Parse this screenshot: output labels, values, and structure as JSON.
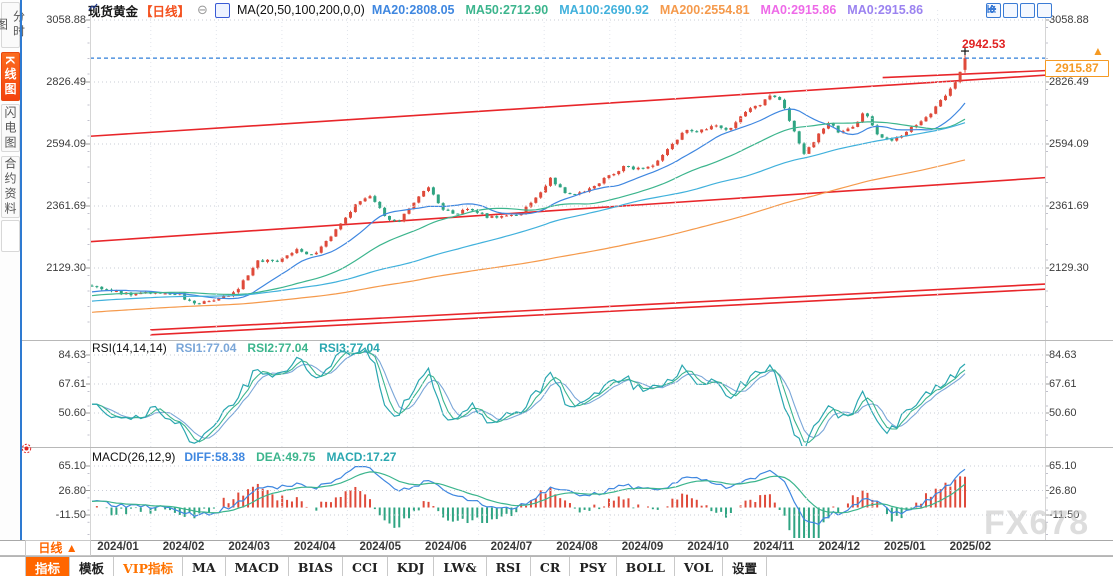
{
  "sidebar": {
    "items": [
      {
        "label": "分时图",
        "active": false
      },
      {
        "label": "K线图",
        "active": true
      },
      {
        "label": "闪电图",
        "active": false
      },
      {
        "label": "合约资料",
        "active": false
      }
    ]
  },
  "header": {
    "symbol": "现货黄金",
    "period": "【日线】",
    "period_color": "#f4511e",
    "collapse_glyph": "⊖",
    "ma_formula": "MA(20,50,100,200,0,0)",
    "ma_legend": [
      {
        "label": "MA20:2808.05",
        "color": "#3f87e0"
      },
      {
        "label": "MA50:2712.90",
        "color": "#3cb58d"
      },
      {
        "label": "MA100:2690.92",
        "color": "#41b1dc"
      },
      {
        "label": "MA200:2554.81",
        "color": "#f59a4c"
      },
      {
        "label": "MA0:2915.86",
        "color": "#ee6ae8"
      },
      {
        "label": "MA0:2915.86",
        "color": "#9b83f0"
      }
    ]
  },
  "top_right_icons": [
    "layout-grid-icon",
    "chart-axes-icon",
    "chart-bars-icon",
    "pan-right-icon"
  ],
  "price_axis": {
    "ticks": [
      "3058.88",
      "2826.49",
      "2594.09",
      "2361.69",
      "2129.30"
    ]
  },
  "rsi_panel": {
    "formula": "RSI(14,14,14)",
    "legend": [
      {
        "label": "RSI1:77.04",
        "color": "#7aa6d8"
      },
      {
        "label": "RSI2:77.04",
        "color": "#3cb58d"
      },
      {
        "label": "RSI3:77.04",
        "color": "#2aa7b0"
      }
    ],
    "ticks": [
      "84.63",
      "67.61",
      "50.60"
    ]
  },
  "macd_panel": {
    "formula": "MACD(26,12,9)",
    "legend": [
      {
        "label": "DIFF:58.38",
        "color": "#3f87e0"
      },
      {
        "label": "DEA:49.75",
        "color": "#3cb58d"
      },
      {
        "label": "MACD:17.27",
        "color": "#2aa7b0"
      }
    ],
    "ticks": [
      "65.10",
      "26.80",
      "-11.50"
    ]
  },
  "annotations": {
    "period_high": "2942.53",
    "last_price": "2915.87",
    "arrow_glyph": "▲"
  },
  "date_axis": {
    "period_button": "日线 ▲",
    "months": [
      "2024/01",
      "2024/02",
      "2024/03",
      "2024/04",
      "2024/05",
      "2024/06",
      "2024/07",
      "2024/08",
      "2024/09",
      "2024/10",
      "2024/11",
      "2024/12",
      "2025/01",
      "2025/02"
    ]
  },
  "toolbar": {
    "items": [
      {
        "label": "指标",
        "style": "active"
      },
      {
        "label": "模板",
        "style": ""
      },
      {
        "label": "VIP指标",
        "style": "vip"
      },
      {
        "label": "MA",
        "style": ""
      },
      {
        "label": "MACD",
        "style": ""
      },
      {
        "label": "BIAS",
        "style": ""
      },
      {
        "label": "CCI",
        "style": ""
      },
      {
        "label": "KDJ",
        "style": ""
      },
      {
        "label": "LW&",
        "style": ""
      },
      {
        "label": "RSI",
        "style": ""
      },
      {
        "label": "CR",
        "style": ""
      },
      {
        "label": "PSY",
        "style": ""
      },
      {
        "label": "BOLL",
        "style": ""
      },
      {
        "label": "VOL",
        "style": ""
      },
      {
        "label": "设置",
        "style": ""
      }
    ]
  },
  "watermark": "FX678",
  "colors": {
    "up": "#df4a3a",
    "down": "#2fa482",
    "trend": "#e8262a",
    "price_line": "#2f7ed8",
    "grid": "#c9ccd6",
    "ma20": "#3f87e0",
    "ma50": "#3cb58d",
    "ma100": "#41b1dc",
    "ma200": "#f59a4c",
    "rsi1": "#7aa6d8",
    "rsi2": "#3cb58d",
    "rsi3": "#2aa7b0",
    "diff": "#3f87e0",
    "dea": "#3cb58d"
  },
  "chart_data": [
    {
      "type": "candlestick",
      "title": "现货黄金 日线 (Spot Gold daily)",
      "x_range": [
        "2024/01",
        "2025/02"
      ],
      "y_ticks": [
        3058.88,
        2826.49,
        2594.09,
        2361.69,
        2129.3
      ],
      "last_close": 2915.86,
      "period_high": 2942.53,
      "last_price_line": 2915.87,
      "ma_values": {
        "MA20": 2808.05,
        "MA50": 2712.9,
        "MA100": 2690.92,
        "MA200": 2554.81
      },
      "close_keypoints": [
        [
          0,
          2063
        ],
        [
          0.02,
          2045
        ],
        [
          0.045,
          2028
        ],
        [
          0.075,
          2040
        ],
        [
          0.1,
          2032
        ],
        [
          0.115,
          1992
        ],
        [
          0.14,
          2008
        ],
        [
          0.165,
          2042
        ],
        [
          0.19,
          2158
        ],
        [
          0.21,
          2152
        ],
        [
          0.235,
          2198
        ],
        [
          0.255,
          2172
        ],
        [
          0.27,
          2240
        ],
        [
          0.29,
          2310
        ],
        [
          0.305,
          2382
        ],
        [
          0.32,
          2398
        ],
        [
          0.335,
          2322
        ],
        [
          0.35,
          2302
        ],
        [
          0.365,
          2358
        ],
        [
          0.385,
          2438
        ],
        [
          0.4,
          2355
        ],
        [
          0.415,
          2332
        ],
        [
          0.435,
          2352
        ],
        [
          0.455,
          2318
        ],
        [
          0.475,
          2322
        ],
        [
          0.49,
          2332
        ],
        [
          0.51,
          2392
        ],
        [
          0.525,
          2468
        ],
        [
          0.545,
          2402
        ],
        [
          0.56,
          2412
        ],
        [
          0.575,
          2432
        ],
        [
          0.59,
          2470
        ],
        [
          0.61,
          2508
        ],
        [
          0.63,
          2498
        ],
        [
          0.645,
          2522
        ],
        [
          0.66,
          2572
        ],
        [
          0.68,
          2652
        ],
        [
          0.695,
          2642
        ],
        [
          0.71,
          2662
        ],
        [
          0.73,
          2648
        ],
        [
          0.75,
          2718
        ],
        [
          0.765,
          2742
        ],
        [
          0.78,
          2782
        ],
        [
          0.792,
          2742
        ],
        [
          0.802,
          2658
        ],
        [
          0.815,
          2560
        ],
        [
          0.83,
          2618
        ],
        [
          0.845,
          2678
        ],
        [
          0.857,
          2632
        ],
        [
          0.87,
          2652
        ],
        [
          0.885,
          2712
        ],
        [
          0.9,
          2632
        ],
        [
          0.915,
          2602
        ],
        [
          0.93,
          2632
        ],
        [
          0.945,
          2668
        ],
        [
          0.96,
          2702
        ],
        [
          0.975,
          2772
        ],
        [
          0.985,
          2802
        ],
        [
          0.995,
          2868
        ],
        [
          1,
          2912
        ]
      ],
      "prehistory": {
        "start": 1875,
        "end": 2045
      },
      "trendlines": [
        {
          "x1_frac": -0.005,
          "p1": 2622,
          "x2_frac": 1.0,
          "p2": 2852
        },
        {
          "x1_frac": 0.83,
          "p1": 2843,
          "x2_frac": 1.071,
          "p2": 2880
        },
        {
          "x1_frac": 0.0,
          "p1": 2228,
          "x2_frac": 1.0,
          "p2": 2468
        },
        {
          "x1_frac": 0.063,
          "p1": 1897,
          "x2_frac": 1.0,
          "p2": 2069
        },
        {
          "x1_frac": 0.063,
          "p1": 1879,
          "x2_frac": 1.0,
          "p2": 2050
        }
      ]
    },
    {
      "type": "line",
      "name": "RSI(14,14,14)",
      "series": [
        "RSI1",
        "RSI2",
        "RSI3"
      ],
      "current": 77.04,
      "y_ticks": [
        84.63,
        67.61,
        50.6
      ],
      "keypoints": [
        [
          0,
          55
        ],
        [
          0.03,
          48
        ],
        [
          0.075,
          52
        ],
        [
          0.1,
          45
        ],
        [
          0.115,
          32
        ],
        [
          0.14,
          45
        ],
        [
          0.165,
          58
        ],
        [
          0.19,
          78
        ],
        [
          0.21,
          72
        ],
        [
          0.235,
          83
        ],
        [
          0.255,
          68
        ],
        [
          0.27,
          80
        ],
        [
          0.29,
          85
        ],
        [
          0.305,
          88
        ],
        [
          0.32,
          84
        ],
        [
          0.335,
          58
        ],
        [
          0.35,
          48
        ],
        [
          0.365,
          62
        ],
        [
          0.385,
          75
        ],
        [
          0.4,
          52
        ],
        [
          0.415,
          44
        ],
        [
          0.435,
          55
        ],
        [
          0.455,
          42
        ],
        [
          0.475,
          48
        ],
        [
          0.49,
          52
        ],
        [
          0.51,
          62
        ],
        [
          0.525,
          74
        ],
        [
          0.545,
          55
        ],
        [
          0.56,
          58
        ],
        [
          0.575,
          62
        ],
        [
          0.59,
          68
        ],
        [
          0.61,
          73
        ],
        [
          0.63,
          62
        ],
        [
          0.645,
          65
        ],
        [
          0.66,
          70
        ],
        [
          0.68,
          78
        ],
        [
          0.695,
          68
        ],
        [
          0.71,
          70
        ],
        [
          0.73,
          60
        ],
        [
          0.75,
          70
        ],
        [
          0.765,
          74
        ],
        [
          0.78,
          78
        ],
        [
          0.792,
          58
        ],
        [
          0.802,
          42
        ],
        [
          0.815,
          30
        ],
        [
          0.83,
          45
        ],
        [
          0.845,
          58
        ],
        [
          0.857,
          48
        ],
        [
          0.87,
          52
        ],
        [
          0.885,
          62
        ],
        [
          0.9,
          44
        ],
        [
          0.915,
          40
        ],
        [
          0.93,
          50
        ],
        [
          0.945,
          58
        ],
        [
          0.96,
          62
        ],
        [
          0.975,
          70
        ],
        [
          0.985,
          73
        ],
        [
          1,
          77
        ]
      ]
    },
    {
      "type": "line+bar",
      "name": "MACD(26,12,9)",
      "diff": 58.38,
      "dea": 49.75,
      "macd": 17.27,
      "y_ticks": [
        65.1,
        26.8,
        -11.5
      ],
      "diff_keypoints": [
        [
          0,
          8
        ],
        [
          0.045,
          2
        ],
        [
          0.075,
          0
        ],
        [
          0.1,
          -5
        ],
        [
          0.115,
          -12
        ],
        [
          0.14,
          -8
        ],
        [
          0.165,
          5
        ],
        [
          0.19,
          28
        ],
        [
          0.21,
          30
        ],
        [
          0.235,
          35
        ],
        [
          0.255,
          30
        ],
        [
          0.27,
          38
        ],
        [
          0.29,
          52
        ],
        [
          0.305,
          62
        ],
        [
          0.32,
          60
        ],
        [
          0.335,
          42
        ],
        [
          0.35,
          25
        ],
        [
          0.365,
          28
        ],
        [
          0.385,
          42
        ],
        [
          0.4,
          30
        ],
        [
          0.415,
          15
        ],
        [
          0.435,
          12
        ],
        [
          0.455,
          2
        ],
        [
          0.475,
          -2
        ],
        [
          0.49,
          2
        ],
        [
          0.51,
          15
        ],
        [
          0.525,
          32
        ],
        [
          0.545,
          25
        ],
        [
          0.56,
          18
        ],
        [
          0.575,
          20
        ],
        [
          0.59,
          26
        ],
        [
          0.61,
          34
        ],
        [
          0.63,
          28
        ],
        [
          0.645,
          26
        ],
        [
          0.66,
          32
        ],
        [
          0.68,
          46
        ],
        [
          0.695,
          42
        ],
        [
          0.71,
          38
        ],
        [
          0.73,
          30
        ],
        [
          0.75,
          40
        ],
        [
          0.765,
          48
        ],
        [
          0.78,
          55
        ],
        [
          0.792,
          42
        ],
        [
          0.802,
          15
        ],
        [
          0.815,
          -18
        ],
        [
          0.83,
          -28
        ],
        [
          0.845,
          -10
        ],
        [
          0.857,
          -8
        ],
        [
          0.87,
          0
        ],
        [
          0.885,
          15
        ],
        [
          0.9,
          8
        ],
        [
          0.915,
          -8
        ],
        [
          0.93,
          -10
        ],
        [
          0.945,
          2
        ],
        [
          0.96,
          12
        ],
        [
          0.975,
          28
        ],
        [
          0.985,
          38
        ],
        [
          1,
          58
        ]
      ]
    }
  ]
}
